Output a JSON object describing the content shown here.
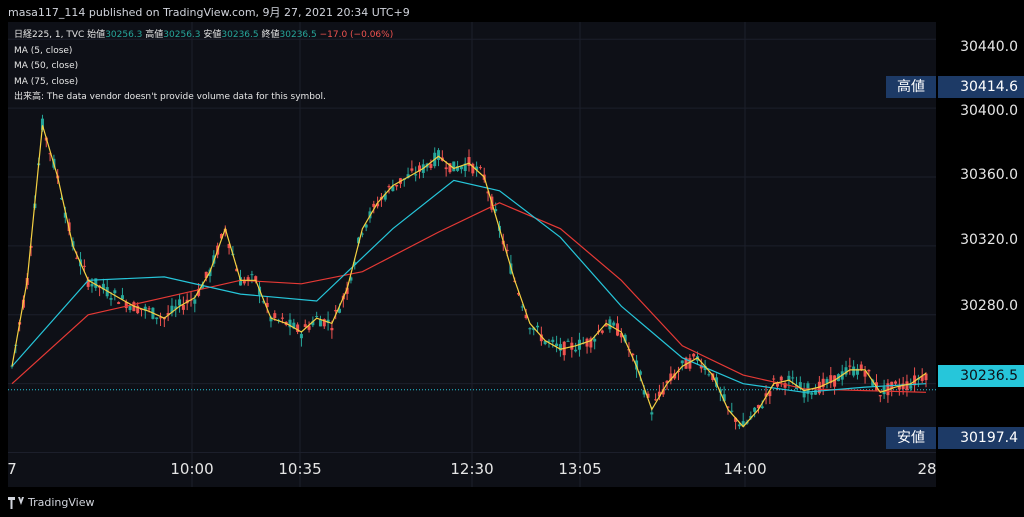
{
  "header": {
    "publisher": "masa117_114 published on TradingView.com, 9月 27, 2021 20:34 UTC+9"
  },
  "legend": {
    "symbol": "日経225, 1, TVC",
    "open_label": "始値",
    "open": "30256.3",
    "high_label": "高値",
    "high": "30256.3",
    "low_label": "安値",
    "low": "30236.5",
    "close_label": "終値",
    "close": "30236.5",
    "change": "−17.0 (−0.06%)",
    "ma1": "MA (5, close)",
    "ma2": "MA (50, close)",
    "ma3": "MA (75, close)",
    "volume_note": "出来高: The data vendor doesn't provide volume data for this symbol."
  },
  "price_axis": {
    "ticks": [
      "30440.0",
      "30400.0",
      "30360.0",
      "30320.0",
      "30280.0"
    ],
    "high_tag_label": "高値",
    "high_tag_value": "30414.6",
    "last_value": "30236.5",
    "low_tag_label": "安値",
    "low_tag_value": "30197.4"
  },
  "time_axis": {
    "ticks": [
      "7",
      "10:00",
      "10:35",
      "12:30",
      "13:05",
      "14:00",
      "28"
    ]
  },
  "footer": {
    "brand": "TradingView"
  },
  "colors": {
    "up": "#26a69a",
    "down": "#ef5350",
    "ma5": "#f5d142",
    "ma50": "#26c6da",
    "ma75": "#e53935",
    "background": "#0e1017",
    "tag": "#1d3a66"
  },
  "chart_data": {
    "type": "candlestick",
    "ylim": [
      30180,
      30450
    ],
    "ma5_points": [
      [
        0,
        30250
      ],
      [
        2,
        30300
      ],
      [
        4,
        30390
      ],
      [
        6,
        30360
      ],
      [
        8,
        30320
      ],
      [
        10,
        30300
      ],
      [
        12,
        30295
      ],
      [
        14,
        30290
      ],
      [
        16,
        30285
      ],
      [
        18,
        30282
      ],
      [
        20,
        30278
      ],
      [
        22,
        30285
      ],
      [
        24,
        30290
      ],
      [
        26,
        30305
      ],
      [
        28,
        30330
      ],
      [
        30,
        30300
      ],
      [
        32,
        30300
      ],
      [
        34,
        30278
      ],
      [
        36,
        30275
      ],
      [
        38,
        30270
      ],
      [
        40,
        30278
      ],
      [
        42,
        30275
      ],
      [
        44,
        30295
      ],
      [
        46,
        30330
      ],
      [
        48,
        30345
      ],
      [
        50,
        30355
      ],
      [
        52,
        30360
      ],
      [
        54,
        30365
      ],
      [
        56,
        30372
      ],
      [
        58,
        30365
      ],
      [
        60,
        30368
      ],
      [
        62,
        30360
      ],
      [
        64,
        30330
      ],
      [
        66,
        30300
      ],
      [
        68,
        30275
      ],
      [
        70,
        30265
      ],
      [
        72,
        30260
      ],
      [
        74,
        30262
      ],
      [
        76,
        30265
      ],
      [
        78,
        30275
      ],
      [
        80,
        30270
      ],
      [
        82,
        30250
      ],
      [
        84,
        30225
      ],
      [
        86,
        30240
      ],
      [
        88,
        30250
      ],
      [
        90,
        30255
      ],
      [
        92,
        30245
      ],
      [
        94,
        30225
      ],
      [
        96,
        30215
      ],
      [
        98,
        30225
      ],
      [
        100,
        30240
      ],
      [
        102,
        30242
      ],
      [
        104,
        30236
      ],
      [
        106,
        30238
      ],
      [
        108,
        30242
      ],
      [
        110,
        30248
      ],
      [
        112,
        30248
      ],
      [
        114,
        30235
      ],
      [
        116,
        30238
      ],
      [
        118,
        30240
      ],
      [
        120,
        30246
      ]
    ],
    "ma50_points": [
      [
        0,
        30250
      ],
      [
        10,
        30300
      ],
      [
        20,
        30302
      ],
      [
        30,
        30292
      ],
      [
        40,
        30288
      ],
      [
        50,
        30330
      ],
      [
        58,
        30358
      ],
      [
        64,
        30352
      ],
      [
        72,
        30325
      ],
      [
        80,
        30285
      ],
      [
        88,
        30255
      ],
      [
        96,
        30240
      ],
      [
        104,
        30235
      ],
      [
        112,
        30238
      ],
      [
        120,
        30240
      ]
    ],
    "ma75_points": [
      [
        0,
        30240
      ],
      [
        10,
        30280
      ],
      [
        20,
        30290
      ],
      [
        30,
        30300
      ],
      [
        38,
        30298
      ],
      [
        46,
        30305
      ],
      [
        56,
        30328
      ],
      [
        64,
        30345
      ],
      [
        72,
        30330
      ],
      [
        80,
        30300
      ],
      [
        88,
        30262
      ],
      [
        96,
        30245
      ],
      [
        104,
        30237
      ],
      [
        112,
        30236
      ],
      [
        120,
        30235
      ]
    ]
  }
}
